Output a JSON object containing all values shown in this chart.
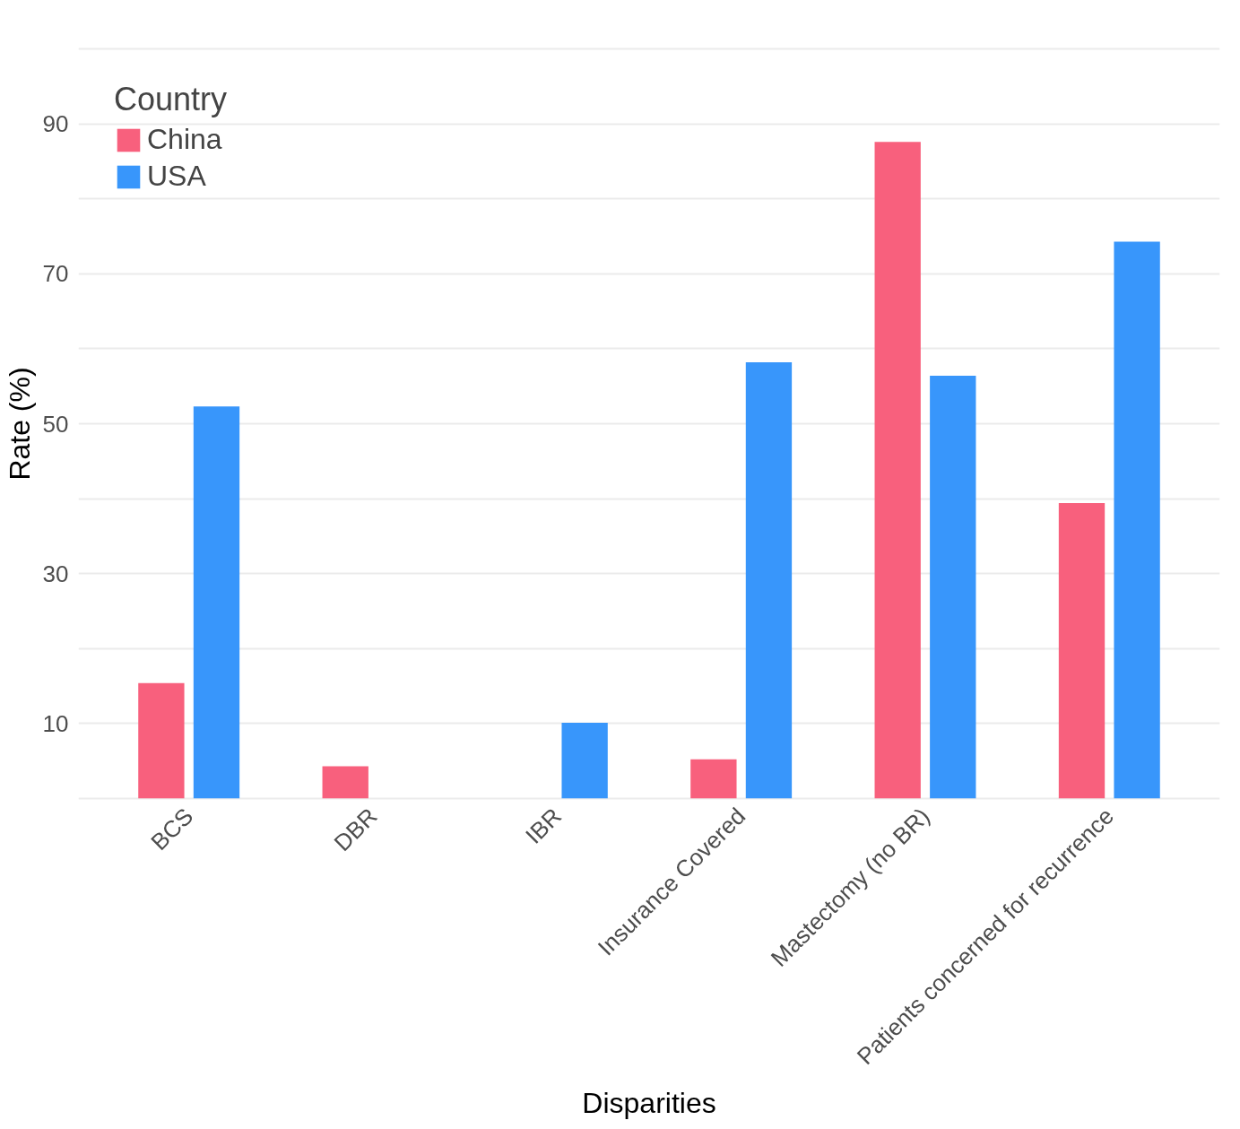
{
  "chart_data": {
    "type": "bar",
    "xlabel": "Disparities",
    "ylabel": "Rate (%)",
    "legend_title": "Country",
    "categories": [
      "BCS",
      "DBR",
      "IBR",
      "Insurance Covered",
      "Mastectomy (no BR)",
      "Patients concerned for recurrence"
    ],
    "series": [
      {
        "name": "China",
        "color": "#f8607d",
        "values": [
          15.4,
          4.3,
          null,
          5.2,
          87.6,
          39.4
        ]
      },
      {
        "name": "USA",
        "color": "#3896fb",
        "values": [
          52.3,
          null,
          10.1,
          58.2,
          56.4,
          74.3
        ]
      }
    ],
    "ylim": [
      -0.5,
      100.5
    ],
    "yticks": [
      {
        "value": 0,
        "label": null
      },
      10,
      {
        "value": 20,
        "label": null
      },
      30,
      {
        "value": 40,
        "label": null
      },
      50,
      {
        "value": 60,
        "label": null
      },
      70,
      {
        "value": 80,
        "label": null
      },
      90,
      {
        "value": 100,
        "label": null
      }
    ],
    "grid": "y",
    "legend": "top left"
  }
}
